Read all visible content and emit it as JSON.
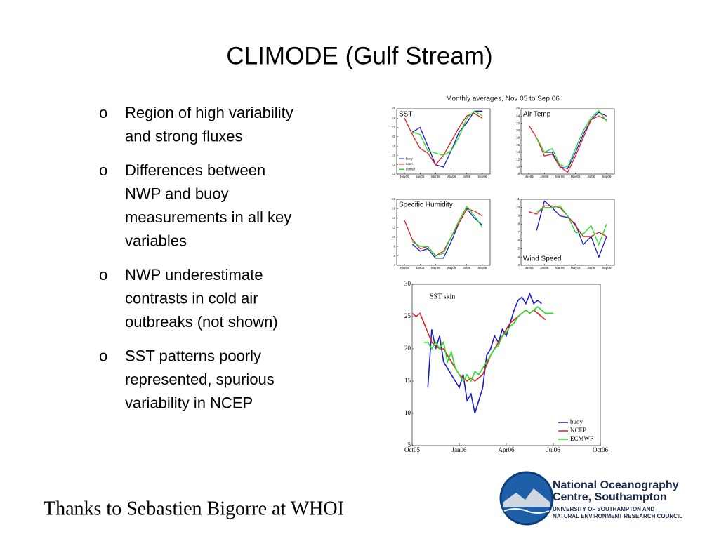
{
  "title": "CLIMODE (Gulf Stream)",
  "bullets": [
    {
      "marker": "o",
      "lines": [
        "Region of high variability",
        "and strong fluxes"
      ]
    },
    {
      "marker": "o",
      "lines": [
        "Differences between",
        "NWP and buoy",
        "measurements in all key",
        "variables"
      ]
    },
    {
      "marker": "o",
      "lines": [
        "NWP underestimate",
        "contrasts in cold air",
        "outbreaks (not shown)"
      ]
    },
    {
      "marker": "o",
      "lines": [
        "SST patterns poorly",
        "represented, spurious",
        "variability in NCEP"
      ]
    }
  ],
  "credit": "Thanks to Sebastien Bigorre at WHOI",
  "logo": {
    "line1": "National Oceanography",
    "line2": "Centre, Southampton",
    "line3": "UNIVERSITY OF SOUTHAMPTON AND",
    "line4": "NATURAL ENVIRONMENT RESEARCH COUNCIL"
  },
  "panel_group_title": "Monthly averages, Nov 05 to Sep 06",
  "chart_data": [
    {
      "type": "line",
      "title": "SST",
      "categories": [
        "Nov05",
        null,
        "Jan06",
        null,
        "Mar06",
        null,
        "May06",
        null,
        "Jul06",
        null,
        "Sep06"
      ],
      "ylim": [
        12,
        26
      ],
      "yticks": [
        12,
        14,
        16,
        18,
        20,
        22,
        24,
        26
      ],
      "legend": "lower left",
      "series": [
        {
          "name": "buoy",
          "color": "#1a1acc",
          "values": [
            null,
            21,
            22,
            18,
            14,
            13.5,
            17,
            21,
            23,
            25.5,
            25.5
          ]
        },
        {
          "name": "ncep",
          "color": "#e02020",
          "values": [
            24,
            20.5,
            17.5,
            16.5,
            14,
            16,
            19,
            22,
            24.5,
            25,
            24
          ]
        },
        {
          "name": "ecmwf",
          "color": "#22dd22",
          "values": [
            null,
            21,
            20.5,
            17,
            16.5,
            16,
            17,
            20,
            24,
            25.5,
            24.5
          ]
        }
      ]
    },
    {
      "type": "line",
      "title": "Air Temp",
      "categories": [
        "Nov05",
        null,
        "Jan06",
        null,
        "Mar06",
        null,
        "May06",
        null,
        "Jul06",
        null,
        "Sep06"
      ],
      "ylim": [
        8,
        26
      ],
      "yticks": [
        8,
        10,
        12,
        14,
        16,
        18,
        20,
        22,
        24,
        26
      ],
      "series": [
        {
          "color": "#1a1acc",
          "values": [
            null,
            18,
            14,
            14,
            10,
            9.5,
            14,
            19,
            23,
            25,
            24
          ]
        },
        {
          "color": "#e02020",
          "values": [
            21.5,
            18,
            13,
            13.5,
            10,
            8.5,
            13,
            18,
            23,
            24,
            23
          ]
        },
        {
          "color": "#22dd22",
          "values": [
            null,
            18,
            14,
            15,
            10.5,
            10,
            15,
            20,
            23.5,
            25.5,
            22.5
          ]
        }
      ]
    },
    {
      "type": "line",
      "title": "Specific Humidity",
      "categories": [
        "Nov05",
        null,
        "Jan06",
        null,
        "Mar06",
        null,
        "May06",
        null,
        "Jul06",
        null,
        "Sep06"
      ],
      "ylim": [
        4,
        18
      ],
      "yticks": [
        4,
        6,
        8,
        10,
        12,
        14,
        16,
        18
      ],
      "series": [
        {
          "color": "#1a1acc",
          "values": [
            null,
            8.5,
            7,
            7.5,
            5.5,
            5.5,
            9,
            13,
            16,
            14,
            12.5
          ]
        },
        {
          "color": "#e02020",
          "values": [
            13.5,
            9.5,
            7.5,
            8,
            6,
            7,
            10,
            13,
            16,
            15.5,
            14.5
          ]
        },
        {
          "color": "#22dd22",
          "values": [
            null,
            9,
            8,
            8,
            6,
            6.5,
            10,
            13.5,
            16.5,
            14.5,
            12
          ]
        }
      ]
    },
    {
      "type": "line",
      "title": "Wind Speed",
      "categories": [
        "Nov05",
        null,
        "Jan06",
        null,
        "Mar06",
        null,
        "May06",
        null,
        "Jul06",
        null,
        "Sep06"
      ],
      "ylim": [
        3,
        11
      ],
      "yticks": [
        3,
        4,
        5,
        6,
        7,
        8,
        9,
        10,
        11
      ],
      "series": [
        {
          "color": "#1a1acc",
          "values": [
            null,
            7.2,
            10.8,
            10,
            9,
            8.8,
            8,
            5.5,
            6.5,
            4,
            6.5
          ]
        },
        {
          "color": "#e02020",
          "values": [
            9.5,
            9.2,
            10.2,
            10.2,
            10,
            9,
            7.8,
            6.5,
            6.5,
            7,
            6.5
          ]
        },
        {
          "color": "#22dd22",
          "values": [
            null,
            9.5,
            10,
            10,
            10.2,
            9,
            7,
            6.8,
            7.8,
            5.5,
            8
          ]
        }
      ]
    },
    {
      "type": "line",
      "title": "SST skin",
      "xlim": [
        0,
        12
      ],
      "xticks": [
        {
          "value": 0,
          "label": "Oct05"
        },
        {
          "value": 3,
          "label": "Jan06"
        },
        {
          "value": 6,
          "label": "Apr06"
        },
        {
          "value": 9,
          "label": "Jul06"
        },
        {
          "value": 12,
          "label": "Oct06"
        }
      ],
      "ylim": [
        5,
        30
      ],
      "yticks": [
        5,
        10,
        15,
        20,
        25,
        30
      ],
      "legend": "lower right",
      "x": [
        0,
        0.25,
        0.5,
        0.75,
        1,
        1.25,
        1.5,
        1.75,
        2,
        2.25,
        2.5,
        2.75,
        3,
        3.25,
        3.5,
        3.75,
        4,
        4.25,
        4.5,
        4.75,
        5,
        5.25,
        5.5,
        5.75,
        6,
        6.25,
        6.5,
        6.75,
        7,
        7.25,
        7.5,
        7.75,
        8,
        8.25,
        8.5,
        8.75,
        9
      ],
      "series": [
        {
          "name": "buoy",
          "color": "#1a1acc",
          "values": [
            null,
            null,
            null,
            null,
            14,
            23,
            20,
            22,
            18,
            17,
            16,
            15,
            14,
            16,
            12,
            13,
            10,
            12,
            14,
            19,
            20,
            22,
            21,
            23,
            22,
            24,
            26,
            27.5,
            28,
            27,
            28.5,
            27,
            27.5,
            27,
            null,
            null,
            null
          ]
        },
        {
          "name": "NCEP",
          "color": "#e02020",
          "values": [
            25.5,
            25,
            25.5,
            24,
            22.5,
            21,
            20.5,
            20,
            20,
            19,
            18,
            17,
            16,
            15.5,
            15,
            15.5,
            15,
            15.5,
            16,
            17.5,
            19,
            20,
            21,
            22,
            23,
            24,
            24.5,
            25,
            25.5,
            26,
            25.5,
            26,
            25.5,
            25,
            24.5,
            null,
            null
          ]
        },
        {
          "name": "ECMWF",
          "color": "#22dd22",
          "values": [
            null,
            null,
            null,
            21,
            21,
            20,
            21,
            20,
            21,
            18,
            19.5,
            17,
            16,
            15,
            16,
            15,
            16.5,
            16,
            17,
            18,
            19,
            20,
            20.5,
            22,
            22.5,
            23.5,
            24,
            25,
            25.5,
            26,
            25.5,
            26,
            26.5,
            26,
            25.5,
            25.5,
            25.5
          ]
        }
      ]
    }
  ]
}
